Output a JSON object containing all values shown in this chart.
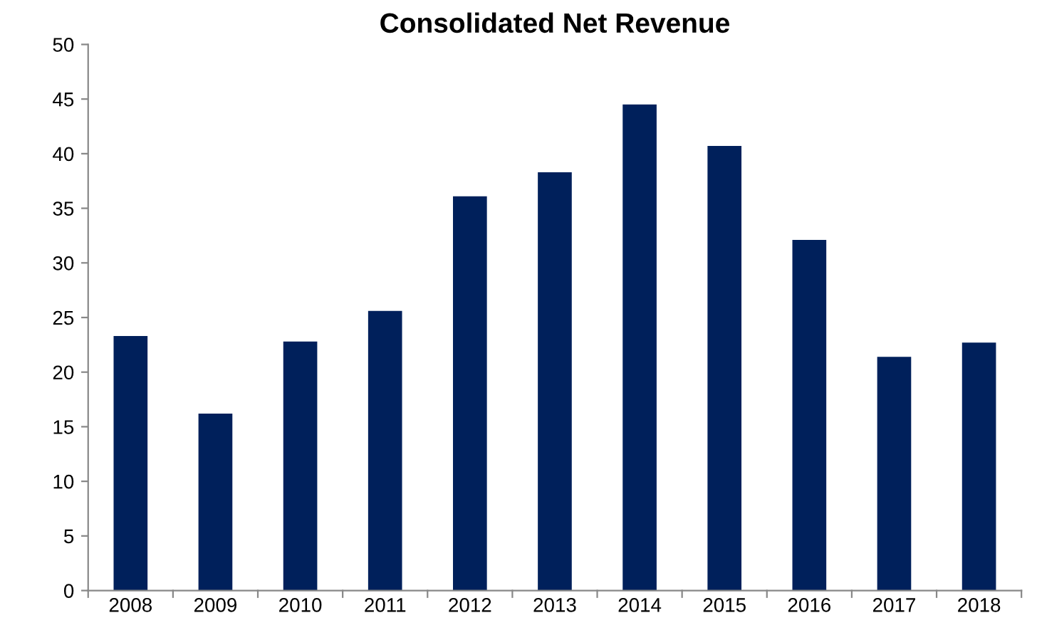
{
  "chart_data": {
    "type": "bar",
    "title": "Consolidated Net Revenue",
    "categories": [
      "2008",
      "2009",
      "2010",
      "2011",
      "2012",
      "2013",
      "2014",
      "2015",
      "2016",
      "2017",
      "2018"
    ],
    "values": [
      23.3,
      16.2,
      22.8,
      25.6,
      36.1,
      38.3,
      44.5,
      40.7,
      32.1,
      21.4,
      22.7
    ],
    "color": "#00205b",
    "ylim": [
      0,
      50
    ],
    "yticks": [
      0,
      5,
      10,
      15,
      20,
      25,
      30,
      35,
      40,
      45,
      50
    ],
    "grid": false
  }
}
